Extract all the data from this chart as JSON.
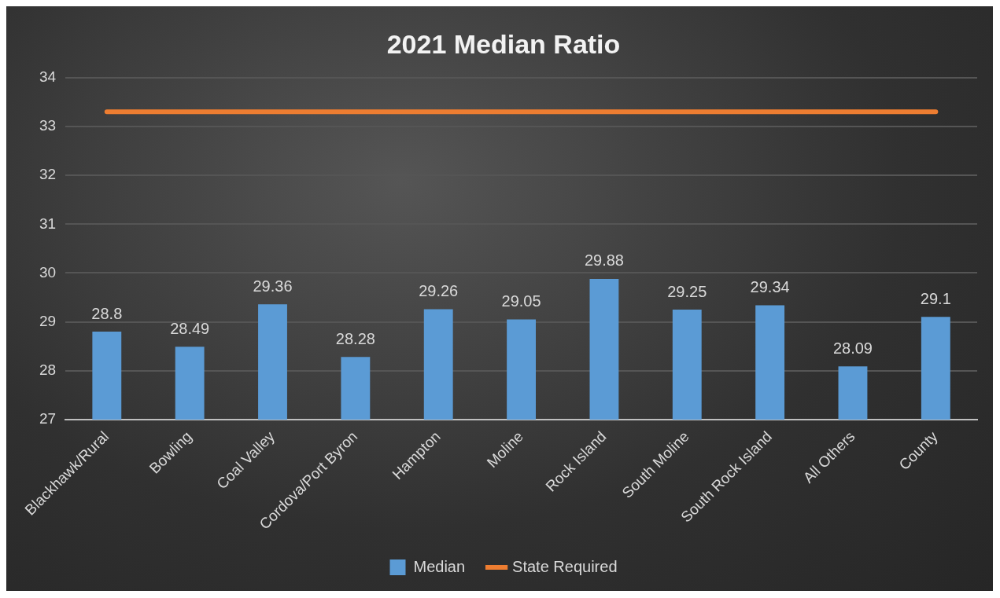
{
  "chart_data": {
    "type": "bar",
    "title": "2021 Median Ratio",
    "categories": [
      "Blackhawk/Rural",
      "Bowling",
      "Coal Valley",
      "Cordova/Port Byron",
      "Hampton",
      "Moline",
      "Rock Island",
      "South Moline",
      "South Rock Island",
      "All Others",
      "County"
    ],
    "series": [
      {
        "name": "Median",
        "color": "#5b9bd5",
        "values": [
          28.8,
          28.49,
          29.36,
          28.28,
          29.26,
          29.05,
          29.88,
          29.25,
          29.34,
          28.09,
          29.1
        ],
        "value_labels": [
          "28.8",
          "28.49",
          "29.36",
          "28.28",
          "29.26",
          "29.05",
          "29.88",
          "29.25",
          "29.34",
          "28.09",
          "29.1"
        ]
      },
      {
        "name": "State Required",
        "type": "line",
        "color": "#ed7d31",
        "values": [
          33.3,
          33.3,
          33.3,
          33.3,
          33.3,
          33.3,
          33.3,
          33.3,
          33.3,
          33.3,
          33.3
        ],
        "marker": "none"
      }
    ],
    "ylim": [
      27,
      34
    ],
    "yticks": [
      27,
      28,
      29,
      30,
      31,
      32,
      33,
      34
    ],
    "grid": "y",
    "legend": "bottom"
  }
}
